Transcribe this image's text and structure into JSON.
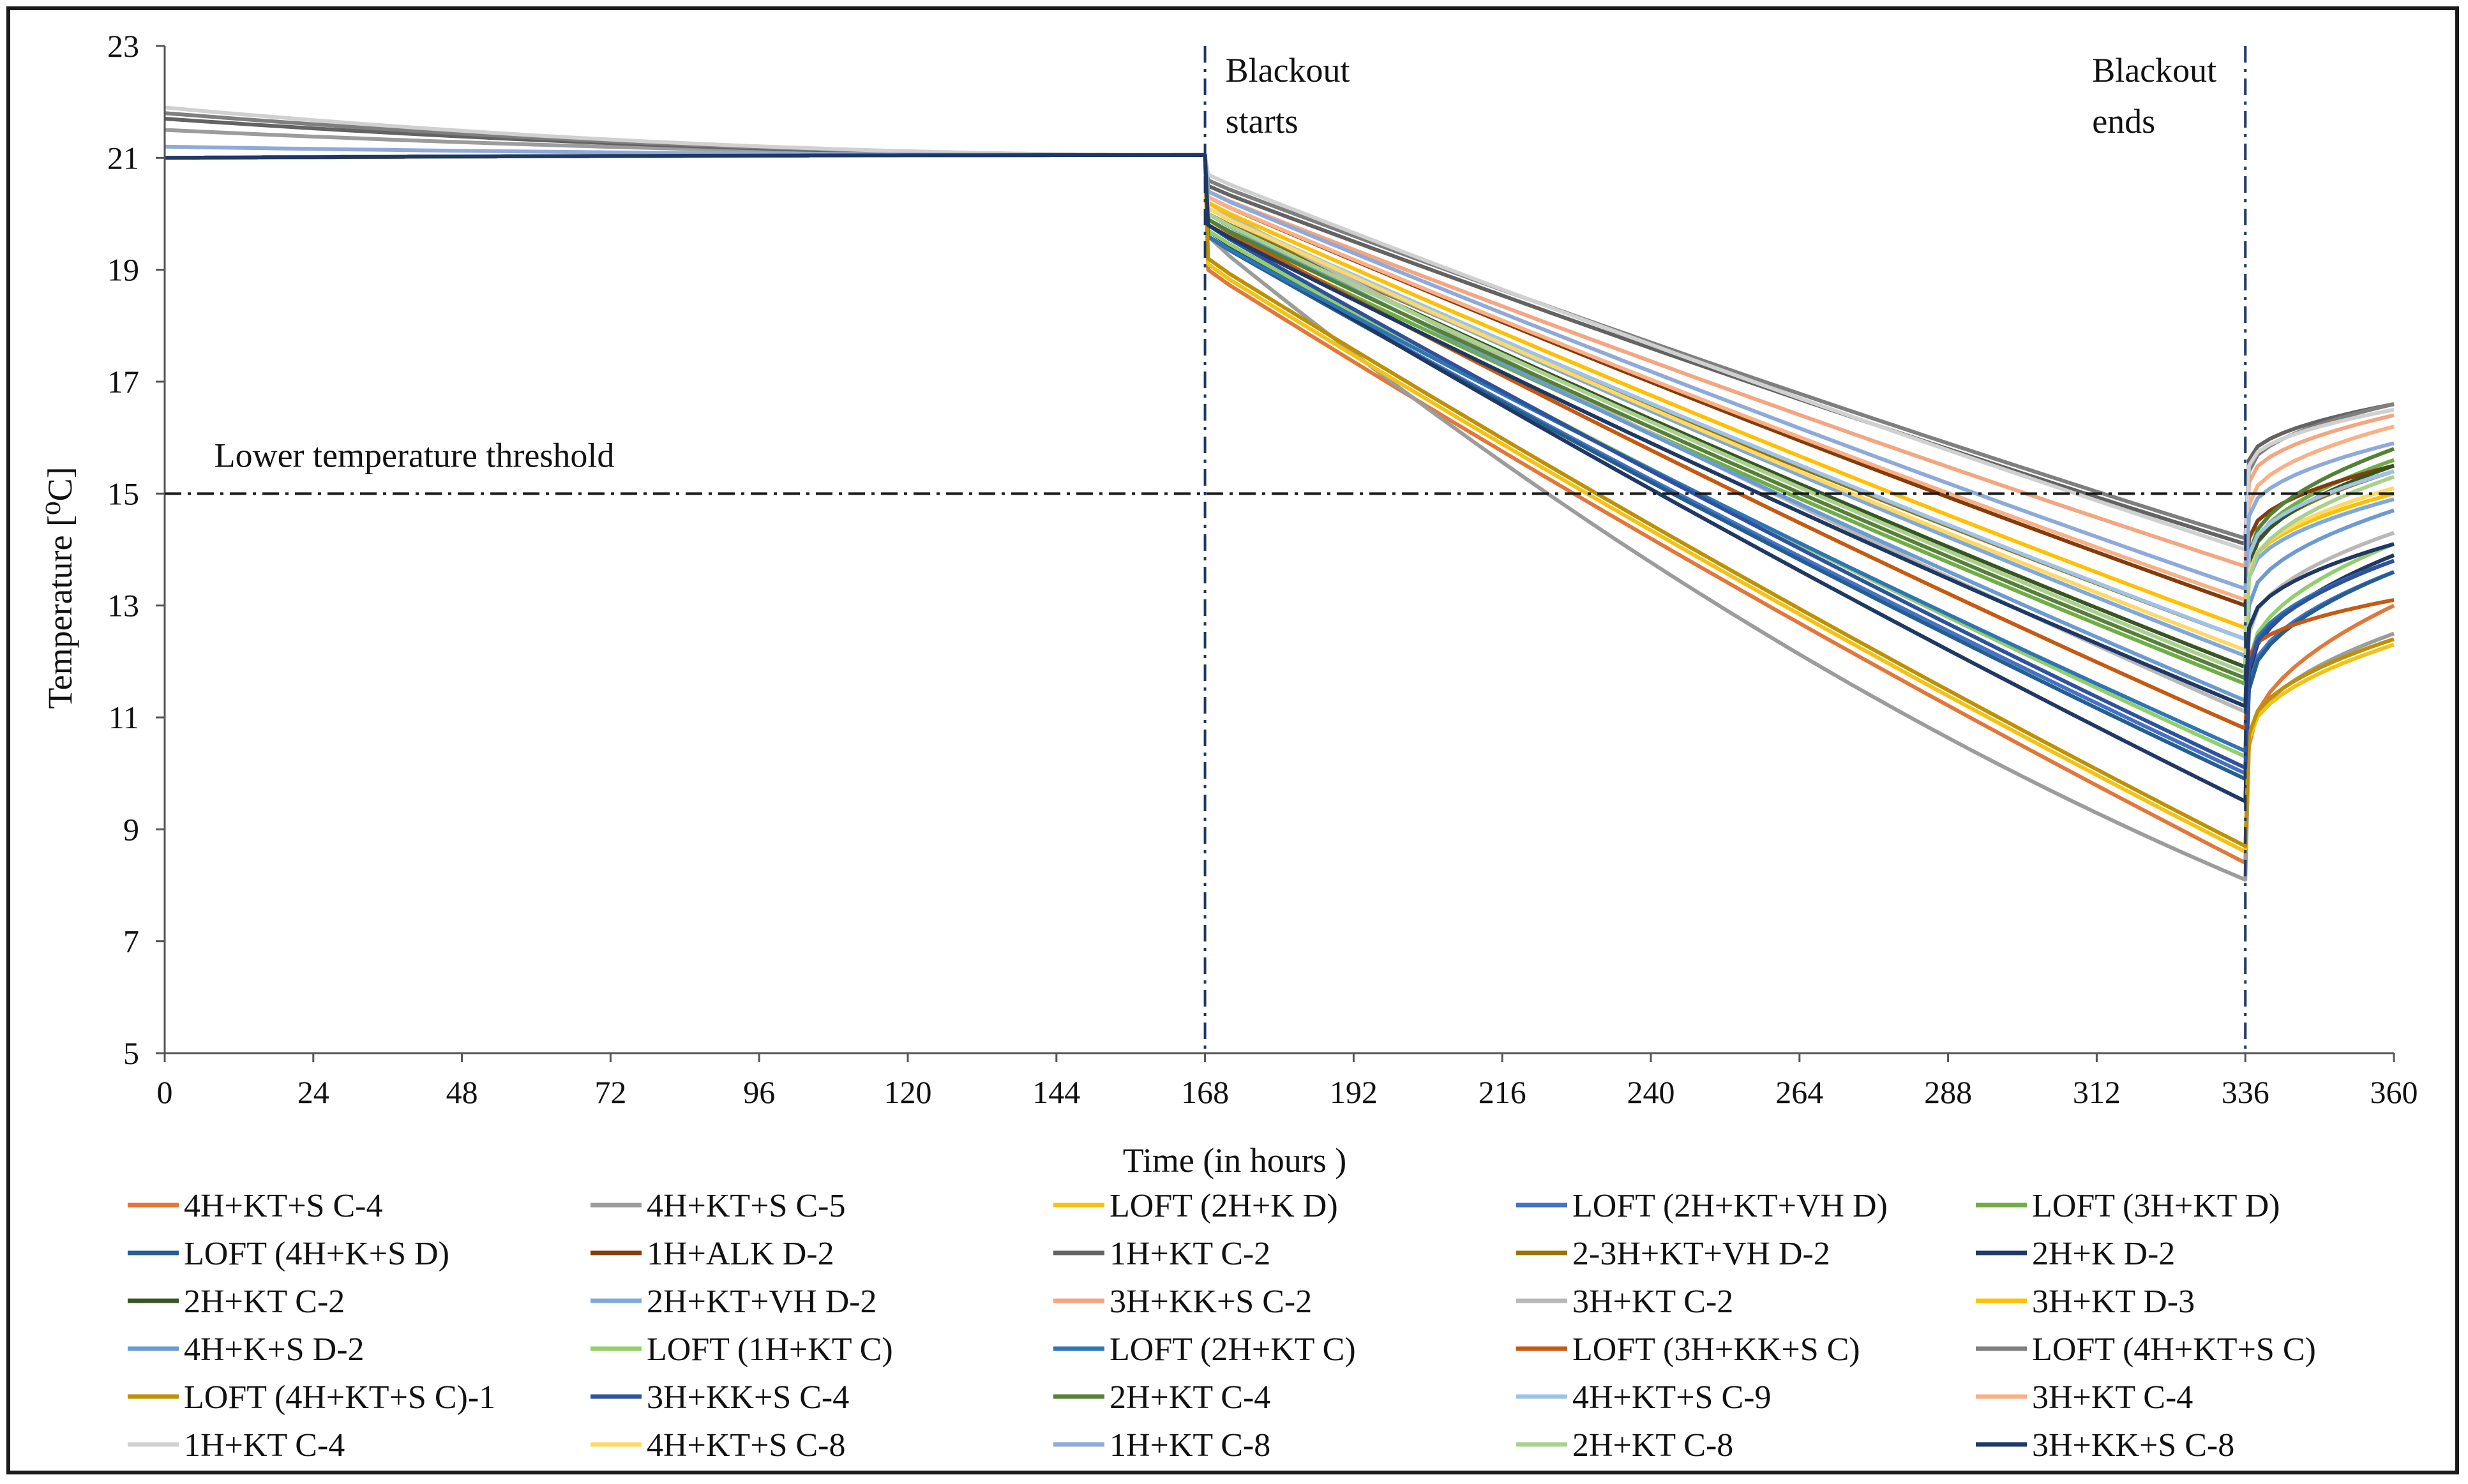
{
  "chart_data": {
    "type": "line",
    "title": "",
    "xlabel": "Time (in hours )",
    "ylabel": "Temperature [⁰C]",
    "xlim": [
      0,
      360
    ],
    "ylim": [
      5,
      23
    ],
    "xticks": [
      "0",
      "24",
      "48",
      "72",
      "96",
      "120",
      "144",
      "168",
      "192",
      "216",
      "240",
      "264",
      "288",
      "312",
      "336",
      "360"
    ],
    "yticks": [
      "5",
      "7",
      "9",
      "11",
      "13",
      "15",
      "17",
      "19",
      "21",
      "23"
    ],
    "grid": false,
    "legend_position": "bottom",
    "threshold": {
      "value": 15,
      "label": "Lower temperature threshold"
    },
    "events": [
      {
        "x": 168,
        "line1": "Blackout",
        "line2": "starts"
      },
      {
        "x": 336,
        "line1": "Blackout",
        "line2": "ends"
      }
    ],
    "series": [
      {
        "name": "4H+KT+S C-4",
        "color": "#e2773a",
        "start": 21.0,
        "drop": 19.0,
        "end336": 8.4,
        "rec": 10.5,
        "end360": 13.0
      },
      {
        "name": "4H+KT+S C-5",
        "color": "#9c9c9c",
        "start": 21.5,
        "drop": 19.6,
        "end336": 8.1,
        "rec": 10.6,
        "end360": 12.5
      },
      {
        "name": "LOFT (2H+K D)",
        "color": "#f2c314",
        "start": 21.0,
        "drop": 19.1,
        "end336": 8.6,
        "rec": 10.6,
        "end360": 12.3
      },
      {
        "name": "LOFT (2H+KT+VH D)",
        "color": "#4472c4",
        "start": 21.0,
        "drop": 19.6,
        "end336": 10.0,
        "rec": 11.6,
        "end360": 13.6
      },
      {
        "name": "LOFT (3H+KT D)",
        "color": "#70ad47",
        "start": 21.0,
        "drop": 19.8,
        "end336": 11.6,
        "rec": 13.8,
        "end360": 15.6
      },
      {
        "name": "LOFT (4H+K+S D)",
        "color": "#255e91",
        "start": 21.0,
        "drop": 19.6,
        "end336": 9.9,
        "rec": 11.5,
        "end360": 13.6
      },
      {
        "name": "1H+ALK D-2",
        "color": "#843c0c",
        "start": 21.0,
        "drop": 20.3,
        "end336": 13.0,
        "rec": 14.2,
        "end360": 15.5
      },
      {
        "name": "1H+KT C-2",
        "color": "#636363",
        "start": 21.7,
        "drop": 20.5,
        "end336": 14.1,
        "rec": 15.6,
        "end360": 16.6
      },
      {
        "name": "2-3H+KT+VH D-2",
        "color": "#997300",
        "start": 21.0,
        "drop": 20.0,
        "end336": 12.4,
        "rec": 13.8,
        "end360": 15.4
      },
      {
        "name": "2H+K D-2",
        "color": "#203864",
        "start": 21.0,
        "drop": 19.7,
        "end336": 9.5,
        "rec": 11.8,
        "end360": 13.9
      },
      {
        "name": "2H+KT C-2",
        "color": "#375623",
        "start": 21.0,
        "drop": 20.0,
        "end336": 11.9,
        "rec": 13.7,
        "end360": 15.5
      },
      {
        "name": "2H+KT+VH D-2",
        "color": "#7fa8dc",
        "start": 21.0,
        "drop": 20.1,
        "end336": 12.1,
        "rec": 13.5,
        "end360": 14.9
      },
      {
        "name": "3H+KK+S C-2",
        "color": "#f4a582",
        "start": 21.0,
        "drop": 20.4,
        "end336": 13.7,
        "rec": 15.2,
        "end360": 16.4
      },
      {
        "name": "3H+KT C-2",
        "color": "#b8b8b8",
        "start": 21.0,
        "drop": 20.2,
        "end336": 11.1,
        "rec": 12.5,
        "end360": 14.3
      },
      {
        "name": "3H+KT D-3",
        "color": "#ffc000",
        "start": 21.0,
        "drop": 20.2,
        "end336": 12.6,
        "rec": 13.6,
        "end360": 15.0
      },
      {
        "name": "4H+K+S D-2",
        "color": "#6b9bd2",
        "start": 21.0,
        "drop": 20.0,
        "end336": 11.3,
        "rec": 13.0,
        "end360": 14.7
      },
      {
        "name": "LOFT (1H+KT C)",
        "color": "#92cf6b",
        "start": 21.0,
        "drop": 19.7,
        "end336": 10.3,
        "rec": 12.0,
        "end360": 14.1
      },
      {
        "name": "LOFT (2H+KT C)",
        "color": "#2e75b6",
        "start": 21.0,
        "drop": 19.6,
        "end336": 10.4,
        "rec": 12.0,
        "end360": 13.8
      },
      {
        "name": "LOFT (3H+KK+S C)",
        "color": "#c55a11",
        "start": 21.0,
        "drop": 19.9,
        "end336": 10.8,
        "rec": 12.1,
        "end360": 13.1
      },
      {
        "name": "LOFT (4H+KT+S C)",
        "color": "#7f7f7f",
        "start": 21.8,
        "drop": 20.6,
        "end336": 14.2,
        "rec": 15.4,
        "end360": 16.6
      },
      {
        "name": "LOFT (4H+KT+S C)-1",
        "color": "#bf9000",
        "start": 21.0,
        "drop": 19.2,
        "end336": 8.7,
        "rec": 10.7,
        "end360": 12.4
      },
      {
        "name": "3H+KK+S C-4",
        "color": "#2f52a0",
        "start": 21.0,
        "drop": 19.8,
        "end336": 10.1,
        "rec": 11.9,
        "end360": 13.8
      },
      {
        "name": "2H+KT C-4",
        "color": "#548235",
        "start": 21.0,
        "drop": 19.9,
        "end336": 11.7,
        "rec": 13.9,
        "end360": 15.8
      },
      {
        "name": "4H+KT+S C-9",
        "color": "#9dc3e6",
        "start": 21.0,
        "drop": 20.1,
        "end336": 12.4,
        "rec": 13.9,
        "end360": 15.4
      },
      {
        "name": "3H+KT C-4",
        "color": "#f8b084",
        "start": 21.0,
        "drop": 20.3,
        "end336": 13.1,
        "rec": 14.8,
        "end360": 16.2
      },
      {
        "name": "1H+KT C-4",
        "color": "#d0d0d0",
        "start": 21.9,
        "drop": 20.7,
        "end336": 14.0,
        "rec": 15.5,
        "end360": 16.5
      },
      {
        "name": "4H+KT+S C-8",
        "color": "#ffd966",
        "start": 21.0,
        "drop": 20.1,
        "end336": 12.2,
        "rec": 13.6,
        "end360": 15.1
      },
      {
        "name": "1H+KT C-8",
        "color": "#8eaadb",
        "start": 21.2,
        "drop": 20.4,
        "end336": 13.3,
        "rec": 14.6,
        "end360": 15.9
      },
      {
        "name": "2H+KT C-8",
        "color": "#a9d18e",
        "start": 21.0,
        "drop": 20.0,
        "end336": 11.8,
        "rec": 13.5,
        "end360": 15.3
      },
      {
        "name": "3H+KK+S C-8",
        "color": "#1f3864",
        "start": 21.0,
        "drop": 19.8,
        "end336": 11.2,
        "rec": 12.6,
        "end360": 14.1
      }
    ]
  }
}
